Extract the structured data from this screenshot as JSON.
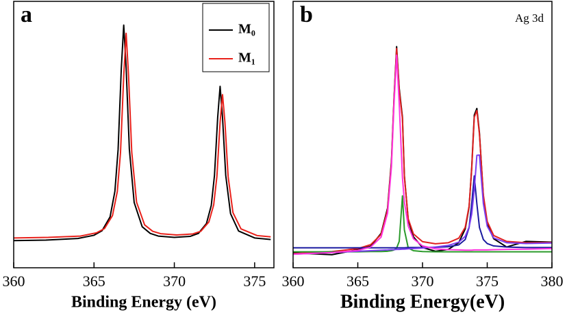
{
  "chart_data": [
    {
      "type": "line",
      "panel_label": "a",
      "x_label": "Binding Energy (eV)",
      "xlim": [
        360,
        376.2
      ],
      "xticks": [
        360,
        365,
        370,
        375
      ],
      "ylim": [
        0,
        100
      ],
      "legend": "upper right",
      "series": [
        {
          "name": "M₀",
          "color": "#000000",
          "x": [
            360,
            362,
            364,
            365,
            365.5,
            366,
            366.3,
            366.5,
            366.7,
            366.85,
            367,
            367.2,
            367.5,
            368,
            368.5,
            369,
            370,
            371,
            371.5,
            372,
            372.3,
            372.5,
            372.7,
            372.85,
            373,
            373.2,
            373.5,
            374,
            375,
            376
          ],
          "values": [
            10.2,
            10.4,
            11.0,
            12.2,
            13.9,
            19.1,
            28.7,
            44.4,
            74.9,
            91.1,
            75.0,
            44.5,
            24.5,
            15.4,
            12.9,
            11.9,
            11.4,
            11.8,
            12.9,
            16.6,
            23.4,
            34.7,
            56.5,
            68.1,
            56.5,
            34.7,
            20.3,
            13.8,
            11.2,
            10.6
          ]
        },
        {
          "name": "M₁",
          "color": "#e8201a",
          "x": [
            360,
            362.15,
            364.15,
            365.15,
            365.65,
            366.15,
            366.45,
            366.65,
            366.85,
            367,
            367.15,
            367.35,
            367.65,
            368.15,
            368.65,
            369.15,
            370.15,
            371.15,
            371.65,
            372.15,
            372.45,
            372.65,
            372.85,
            373,
            373.15,
            373.35,
            373.65,
            374.15,
            375.15,
            376
          ],
          "values": [
            11.2,
            11.4,
            11.9,
            13.1,
            14.7,
            19.6,
            28.6,
            43.3,
            72.0,
            88.0,
            72.1,
            43.4,
            24.6,
            16.1,
            13.7,
            12.8,
            12.3,
            12.7,
            13.7,
            17.2,
            23.6,
            34.2,
            54.7,
            65.0,
            54.7,
            34.2,
            20.7,
            14.6,
            12.1,
            11.6
          ]
        }
      ]
    },
    {
      "type": "line",
      "panel_label": "b",
      "x_label": "Binding Energy(eV)",
      "annotation": "Ag 3d",
      "xlim": [
        360,
        380
      ],
      "xticks": [
        360,
        365,
        370,
        375,
        380
      ],
      "ylim": [
        0,
        100
      ],
      "x": [
        360,
        363,
        365,
        366,
        366.8,
        367.3,
        367.6,
        367.8,
        368,
        368.2,
        368.45,
        368.6,
        368.9,
        369.3,
        370,
        371,
        372,
        372.8,
        373.3,
        373.6,
        373.8,
        374,
        374.2,
        374.4,
        374.7,
        375,
        375.5,
        376.5,
        378,
        380
      ],
      "series": [
        {
          "color": "#000000",
          "values": [
            5.6,
            4.9,
            6.8,
            8.1,
            12.9,
            22.4,
            40.1,
            63.8,
            83.0,
            67.4,
            56.5,
            34.6,
            17.8,
            11.6,
            7.6,
            6.2,
            6.9,
            9.4,
            14.6,
            22.8,
            37.5,
            57.3,
            59.8,
            50.6,
            26.9,
            16.3,
            10.9,
            7.8,
            9.9,
            9.6
          ]
        },
        {
          "color": "#e02020",
          "values": [
            5.3,
            6.1,
            7.2,
            8.7,
            12.5,
            21.8,
            39.3,
            63.3,
            82.3,
            66.6,
            55.9,
            34.0,
            18.3,
            12.7,
            9.8,
            9.0,
            9.4,
            11.1,
            15.2,
            23.2,
            36.9,
            56.5,
            59.0,
            50.1,
            27.4,
            17.4,
            12.1,
            9.9,
            9.4,
            9.5
          ]
        },
        {
          "color": "#2a9a2a",
          "values": [
            6.0,
            6.0,
            6.0,
            6.1,
            6.1,
            6.2,
            6.4,
            6.7,
            7.4,
            9.9,
            27.0,
            14.2,
            7.4,
            6.4,
            6.1,
            6.0,
            6.0,
            6.0,
            6.0,
            6.0,
            6.0,
            6.0,
            6.0,
            6.0,
            6.0,
            6.0,
            6.0,
            6.0,
            6.0,
            6.0
          ]
        },
        {
          "color": "#1a1aa0",
          "values": [
            7.5,
            7.5,
            7.5,
            7.5,
            7.5,
            7.5,
            7.5,
            7.5,
            7.5,
            7.5,
            7.5,
            7.5,
            7.6,
            7.6,
            7.6,
            7.7,
            7.9,
            8.6,
            10.6,
            15.1,
            24.0,
            34.5,
            24.0,
            15.1,
            10.6,
            9.1,
            8.2,
            7.8,
            7.6,
            7.6
          ]
        },
        {
          "color": "#7a3cf0",
          "values": [
            5.1,
            5.7,
            6.2,
            6.4,
            6.6,
            6.7,
            6.8,
            6.8,
            6.9,
            6.9,
            7.0,
            7.0,
            7.1,
            7.2,
            7.4,
            7.8,
            8.4,
            9.6,
            11.8,
            15.3,
            20.1,
            29.3,
            42.2,
            42.3,
            24.1,
            15.6,
            11.2,
            9.4,
            9.1,
            9.3
          ]
        },
        {
          "color": "#ff33dd",
          "values": [
            5.1,
            5.7,
            6.5,
            7.8,
            11.5,
            20.5,
            37.9,
            61.6,
            79.8,
            61.6,
            33.8,
            24.7,
            15.6,
            10.9,
            8.2,
            7.1,
            6.8,
            6.7,
            6.6,
            6.6,
            6.6,
            6.7,
            6.7,
            6.7,
            6.7,
            6.7,
            6.8,
            6.9,
            7.0,
            7.2
          ]
        }
      ]
    }
  ]
}
